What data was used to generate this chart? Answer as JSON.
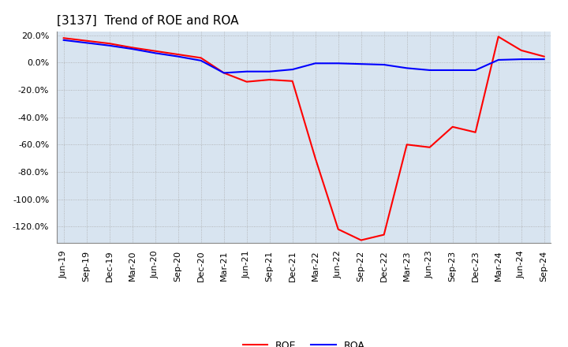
{
  "title": "[3137]  Trend of ROE and ROA",
  "x_labels": [
    "Jun-19",
    "Sep-19",
    "Dec-19",
    "Mar-20",
    "Jun-20",
    "Sep-20",
    "Dec-20",
    "Mar-21",
    "Jun-21",
    "Sep-21",
    "Dec-21",
    "Mar-22",
    "Jun-22",
    "Sep-22",
    "Dec-22",
    "Mar-23",
    "Jun-23",
    "Sep-23",
    "Dec-23",
    "Mar-24",
    "Jun-24",
    "Sep-24"
  ],
  "roe": [
    18.0,
    16.0,
    14.0,
    11.0,
    8.5,
    6.0,
    3.5,
    -7.5,
    -14.0,
    -12.5,
    -13.5,
    -70.0,
    -122.0,
    -130.0,
    -126.0,
    -60.0,
    -62.0,
    -47.0,
    -51.0,
    19.0,
    9.0,
    4.5
  ],
  "roa": [
    16.5,
    14.5,
    12.5,
    10.0,
    7.0,
    4.5,
    1.5,
    -7.5,
    -6.5,
    -6.5,
    -5.0,
    -0.5,
    -0.5,
    -1.0,
    -1.5,
    -4.0,
    -5.5,
    -5.5,
    -5.5,
    2.0,
    2.5,
    2.5
  ],
  "roe_color": "#FF0000",
  "roa_color": "#0000FF",
  "ylim": [
    -132,
    23
  ],
  "yticks": [
    20,
    0,
    -20,
    -40,
    -60,
    -80,
    -100,
    -120
  ],
  "plot_bg_color": "#D8E4F0",
  "fig_bg_color": "#FFFFFF",
  "grid_color": "#AAAAAA",
  "title_fontsize": 11,
  "tick_fontsize": 8,
  "legend_fontsize": 9,
  "line_width": 1.5
}
